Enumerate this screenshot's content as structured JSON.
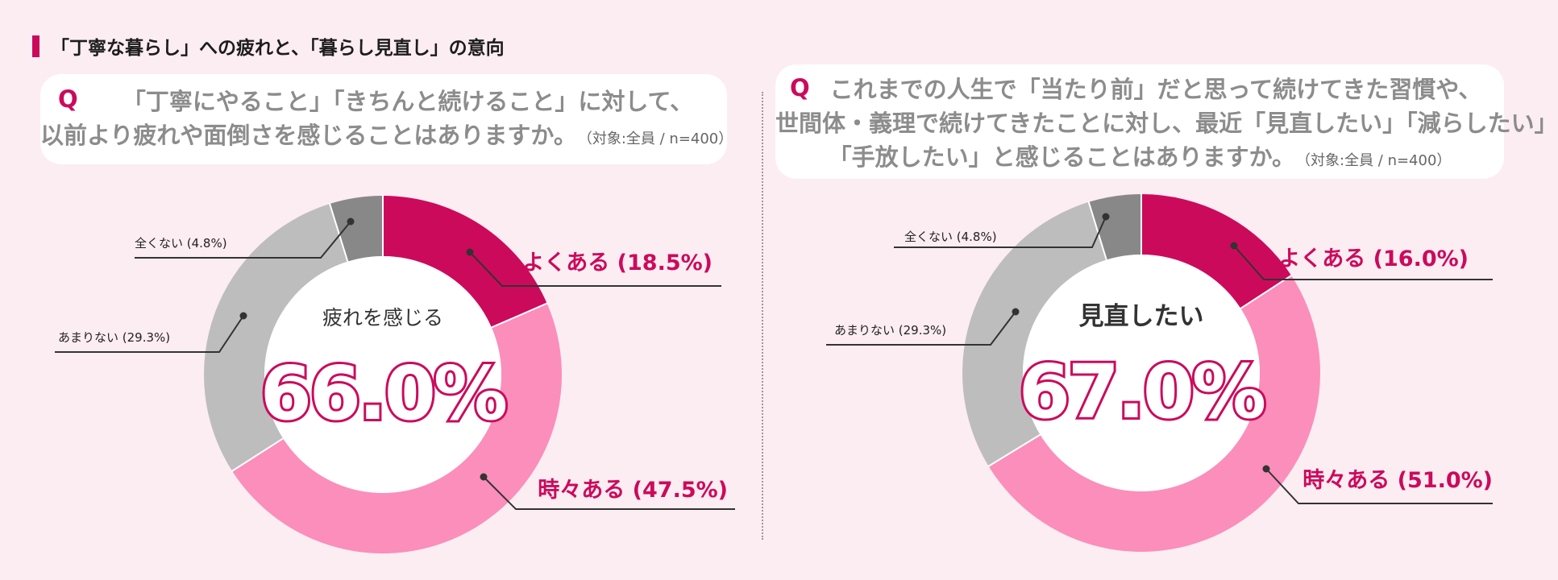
{
  "page": {
    "title": "「丁寧な暮らし」への疲れと、「暮らし見直し」の意向"
  },
  "colors": {
    "accent": "#cc0a5c",
    "often": "#cc0a5c",
    "sometimes": "#fb8ebb",
    "rarely": "#bdbdbd",
    "never": "#888888",
    "background": "#fcedf2"
  },
  "questions": [
    {
      "mark": "Q",
      "lines": [
        "「丁寧にやること」「きちんと続けること」に対して、",
        "以前より疲れや面倒さを感じることはありますか。"
      ],
      "target": "（対象:全員 / n=400）"
    },
    {
      "mark": "Q",
      "lines": [
        "これまでの人生で「当たり前」だと思って続けてきた習慣や、",
        "世間体・義理で続けてきたことに対し、最近「見直したい」「減らしたい」",
        "「手放したい」と感じることはありますか。"
      ],
      "target": "（対象:全員 / n=400）"
    }
  ],
  "chart_data": [
    {
      "type": "pie",
      "donut": true,
      "center_label": "疲れを感じる",
      "center_value": "66.0%",
      "slices": [
        {
          "label": "よくある",
          "value": 18.5,
          "display": "よくある (18.5%)",
          "color": "#cc0a5c",
          "emphasis": true
        },
        {
          "label": "時々ある",
          "value": 47.5,
          "display": "時々ある (47.5%)",
          "color": "#fb8ebb",
          "emphasis": true
        },
        {
          "label": "あまりない",
          "value": 29.3,
          "display": "あまりない (29.3%)",
          "color": "#bdbdbd",
          "emphasis": false
        },
        {
          "label": "全くない",
          "value": 4.8,
          "display": "全くない (4.8%)",
          "color": "#888888",
          "emphasis": false
        }
      ]
    },
    {
      "type": "pie",
      "donut": true,
      "center_label": "見直したい",
      "center_value": "67.0%",
      "slices": [
        {
          "label": "よくある",
          "value": 16.0,
          "display": "よくある (16.0%)",
          "color": "#cc0a5c",
          "emphasis": true
        },
        {
          "label": "時々ある",
          "value": 51.0,
          "display": "時々ある (51.0%)",
          "color": "#fb8ebb",
          "emphasis": true
        },
        {
          "label": "あまりない",
          "value": 29.3,
          "display": "あまりない (29.3%)",
          "color": "#bdbdbd",
          "emphasis": false
        },
        {
          "label": "全くない",
          "value": 4.8,
          "display": "全くない (4.8%)",
          "color": "#888888",
          "emphasis": false
        }
      ]
    }
  ]
}
